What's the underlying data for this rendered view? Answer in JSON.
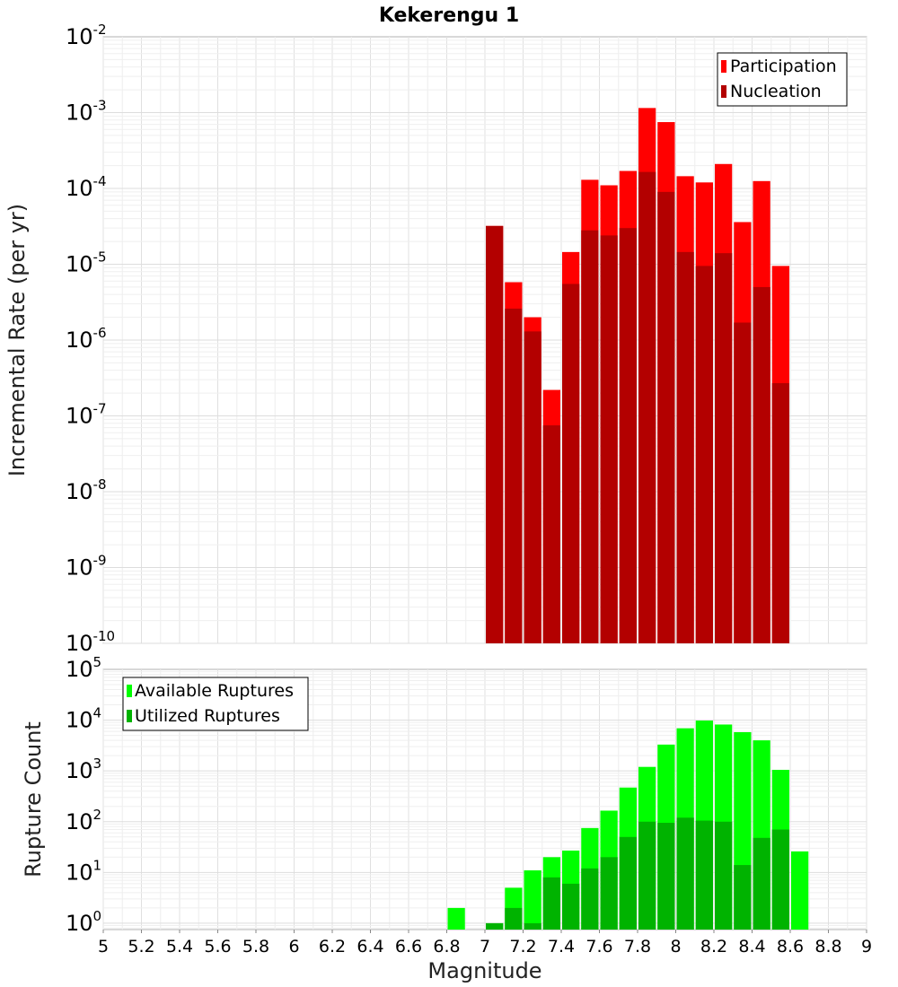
{
  "chart_title": "Kekerengu 1",
  "colors": {
    "participation": "#ff0000",
    "nucleation": "#b30000",
    "available": "#00ff00",
    "utilized": "#00b300"
  },
  "chart_data": [
    {
      "type": "bar",
      "title": "Kekerengu 1",
      "ylabel": "Incremental Rate (per yr)",
      "xlabel": "",
      "yscale": "log",
      "xlim": [
        5,
        9
      ],
      "ylim": [
        1e-10,
        0.01
      ],
      "y_ticks": [
        "10^-10",
        "10^-9",
        "10^-8",
        "10^-7",
        "10^-6",
        "10^-5",
        "10^-4",
        "10^-3",
        "10^-2"
      ],
      "grid": true,
      "legend_placement": "top-right",
      "bin_width": 0.1,
      "series": [
        {
          "name": "Participation",
          "x": [
            7.05,
            7.15,
            7.25,
            7.35,
            7.45,
            7.55,
            7.65,
            7.75,
            7.85,
            7.95,
            8.05,
            8.15,
            8.25,
            8.35,
            8.45,
            8.55
          ],
          "values": [
            3.2e-05,
            5.8e-06,
            2e-06,
            2.2e-07,
            1.45e-05,
            0.00013,
            0.00011,
            0.00017,
            0.00115,
            0.00075,
            0.000145,
            0.00012,
            0.00021,
            3.6e-05,
            0.000125,
            9.5e-06
          ]
        },
        {
          "name": "Nucleation",
          "x": [
            7.05,
            7.15,
            7.25,
            7.35,
            7.45,
            7.55,
            7.65,
            7.75,
            7.85,
            7.95,
            8.05,
            8.15,
            8.25,
            8.35,
            8.45,
            8.55
          ],
          "values": [
            3.2e-05,
            2.6e-06,
            1.3e-06,
            7.5e-08,
            5.5e-06,
            2.8e-05,
            2.4e-05,
            3e-05,
            0.000165,
            9e-05,
            1.45e-05,
            9.5e-06,
            1.4e-05,
            1.7e-06,
            5e-06,
            2.7e-07
          ]
        }
      ]
    },
    {
      "type": "bar",
      "title": "",
      "ylabel": "Rupture Count",
      "xlabel": "Magnitude",
      "yscale": "log",
      "xlim": [
        5,
        9
      ],
      "ylim": [
        0.75,
        100000.0
      ],
      "x_ticks": [
        "5",
        "5.2",
        "5.4",
        "5.6",
        "5.8",
        "6",
        "6.2",
        "6.4",
        "6.6",
        "6.8",
        "7",
        "7.2",
        "7.4",
        "7.6",
        "7.8",
        "8",
        "8.2",
        "8.4",
        "8.6",
        "8.8",
        "9"
      ],
      "y_ticks": [
        "10^0",
        "10^1",
        "10^2",
        "10^3",
        "10^4",
        "10^5"
      ],
      "grid": true,
      "legend_placement": "top-left",
      "bin_width": 0.1,
      "series": [
        {
          "name": "Available Ruptures",
          "x": [
            6.85,
            7.05,
            7.15,
            7.25,
            7.35,
            7.45,
            7.55,
            7.65,
            7.75,
            7.85,
            7.95,
            8.05,
            8.15,
            8.25,
            8.35,
            8.45,
            8.55,
            8.65
          ],
          "values": [
            2,
            1,
            5,
            11,
            20,
            27,
            75,
            165,
            470,
            1200,
            3300,
            6900,
            9800,
            8200,
            5800,
            4000,
            1050,
            26
          ]
        },
        {
          "name": "Utilized Ruptures",
          "x": [
            7.05,
            7.15,
            7.25,
            7.35,
            7.45,
            7.55,
            7.65,
            7.75,
            7.85,
            7.95,
            8.05,
            8.15,
            8.25,
            8.35,
            8.45,
            8.55
          ],
          "values": [
            1,
            2,
            1,
            8,
            6,
            12,
            20,
            50,
            100,
            95,
            120,
            105,
            100,
            14,
            48,
            70
          ]
        }
      ]
    }
  ]
}
